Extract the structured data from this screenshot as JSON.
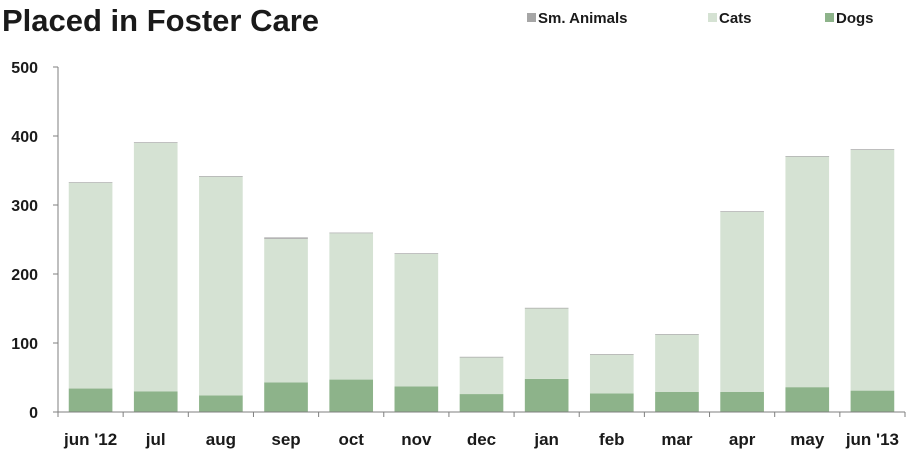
{
  "chart_data": {
    "type": "bar",
    "stacked": true,
    "title": "Placed in Foster Care",
    "xlabel": "",
    "ylabel": "",
    "ylim": [
      0,
      500
    ],
    "yticks": [
      0,
      100,
      200,
      300,
      400,
      500
    ],
    "grid": false,
    "legend_position": "top-right",
    "categories": [
      "jun '12",
      "jul",
      "aug",
      "sep",
      "oct",
      "nov",
      "dec",
      "jan",
      "feb",
      "mar",
      "apr",
      "may",
      "jun '13"
    ],
    "series": [
      {
        "name": "Dogs",
        "color": "#8db38a",
        "values": [
          34,
          30,
          24,
          43,
          47,
          37,
          26,
          48,
          27,
          29,
          29,
          36,
          31
        ]
      },
      {
        "name": "Cats",
        "color": "#d5e2d3",
        "values": [
          298,
          360,
          317,
          208,
          212,
          192,
          53,
          102,
          56,
          83,
          261,
          334,
          349
        ]
      },
      {
        "name": "Sm. Animals",
        "color": "#a6a6a6",
        "values": [
          1,
          1,
          1,
          2,
          1,
          1,
          1,
          1,
          1,
          1,
          1,
          1,
          1
        ]
      }
    ],
    "legend_order": [
      "Sm. Animals",
      "Cats",
      "Dogs"
    ]
  }
}
